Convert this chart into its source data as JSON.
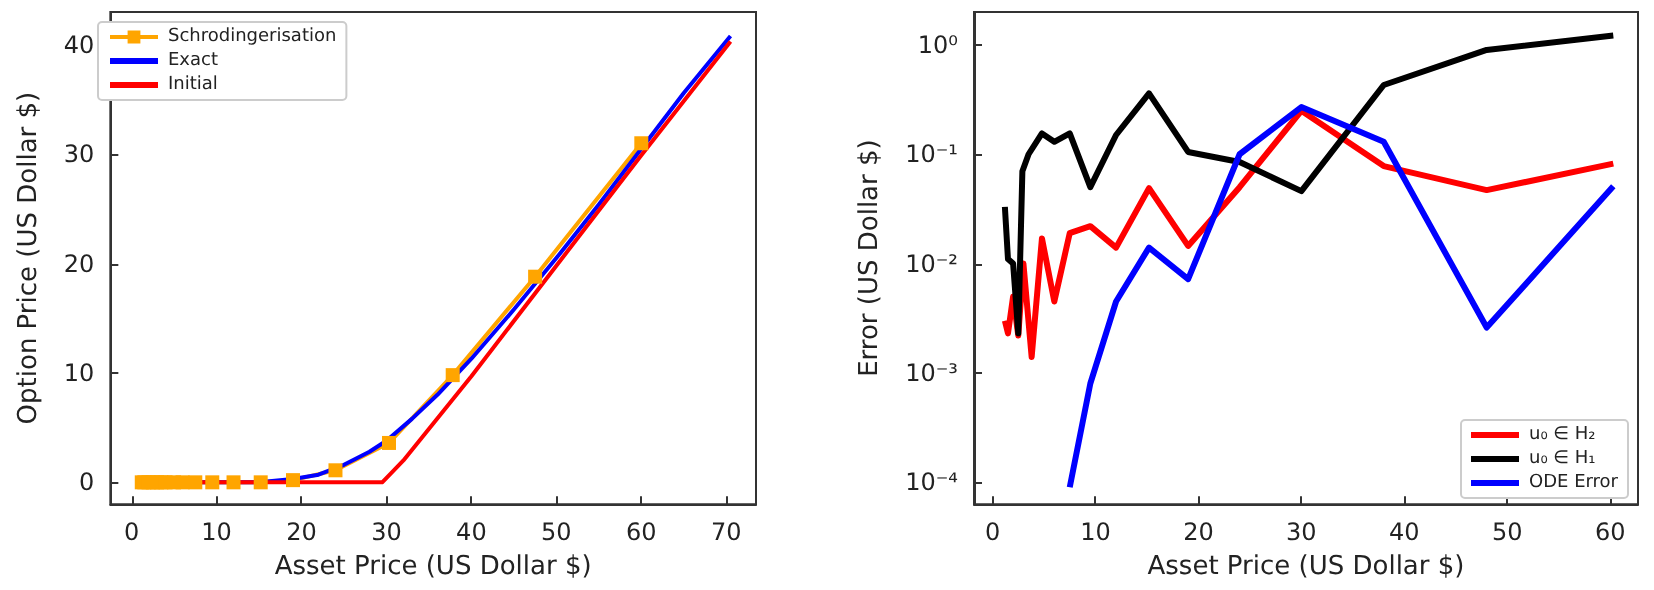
{
  "chart_data": [
    {
      "type": "line",
      "xlabel": "Asset Price (US Dollar $)",
      "ylabel": "Option Price (US Dollar $)",
      "xlim": [
        -2.5,
        73.5
      ],
      "ylim": [
        -2,
        43
      ],
      "xticks": [
        0,
        10,
        20,
        30,
        40,
        50,
        60,
        70
      ],
      "yticks": [
        0,
        10,
        20,
        30,
        40
      ],
      "legend": "top left",
      "series": [
        {
          "name": "Schrodingerisation",
          "color": "#ffa500",
          "marker": "square",
          "x": [
            1.2,
            1.5,
            2,
            2.5,
            3,
            3.5,
            4,
            5,
            6,
            7.5,
            9.5,
            12,
            15.2,
            19,
            24,
            30.3,
            37.8,
            47.5,
            60
          ],
          "values": [
            0,
            0,
            0,
            0,
            0,
            0,
            0,
            0,
            0,
            0,
            0,
            0,
            0,
            0.2,
            1.1,
            3.6,
            9.8,
            18.8,
            31
          ]
        },
        {
          "name": "Exact",
          "color": "#0000ff",
          "marker": "none",
          "x": [
            1.5,
            10,
            15,
            19,
            22,
            25,
            28,
            30,
            33,
            36,
            40,
            45,
            50,
            55,
            60,
            65,
            70.5
          ],
          "values": [
            0,
            0,
            0,
            0.3,
            0.7,
            1.6,
            2.8,
            3.8,
            5.8,
            8,
            11.3,
            15.8,
            20.5,
            25.4,
            30.5,
            35.6,
            40.8
          ]
        },
        {
          "name": "Initial",
          "color": "#ff0000",
          "marker": "none",
          "x": [
            1.5,
            29.5,
            30.5,
            32,
            40,
            50,
            60,
            70.5
          ],
          "values": [
            0,
            0,
            0.8,
            2,
            9.7,
            19.8,
            29.9,
            40.3
          ]
        }
      ]
    },
    {
      "type": "line",
      "xlabel": "Asset Price (US Dollar $)",
      "ylabel": "Error (US Dollar $)",
      "log": "y",
      "xlim": [
        -1.8,
        62.7
      ],
      "ylim": [
        6.3e-05,
        2
      ],
      "xticks": [
        0,
        10,
        20,
        30,
        40,
        50,
        60
      ],
      "yticks": [
        {
          "value": 0.0001,
          "label": "10⁻⁴"
        },
        {
          "value": 0.001,
          "label": "10⁻³"
        },
        {
          "value": 0.01,
          "label": "10⁻²"
        },
        {
          "value": 0.1,
          "label": "10⁻¹"
        },
        {
          "value": 1,
          "label": "10⁰"
        }
      ],
      "legend": "bottom right",
      "series": [
        {
          "name": "u₀ ∈ H₂",
          "color": "#ff0000",
          "marker": "none",
          "x": [
            1.2,
            1.5,
            2,
            2.5,
            3,
            3.8,
            4.8,
            6,
            7.5,
            9.5,
            12,
            15.2,
            19,
            24,
            30,
            38,
            48,
            60.3
          ],
          "values": [
            0.003,
            0.0023,
            0.005,
            0.0022,
            0.01,
            0.0014,
            0.017,
            0.0045,
            0.019,
            0.022,
            0.014,
            0.049,
            0.0145,
            0.05,
            0.25,
            0.078,
            0.047,
            0.082
          ]
        },
        {
          "name": "u₀ ∈ H₁",
          "color": "#000000",
          "marker": "none",
          "x": [
            1.2,
            1.5,
            2,
            2.5,
            2.9,
            3.5,
            4.8,
            6,
            7.5,
            9.5,
            12,
            15.2,
            19,
            24,
            30,
            38,
            48,
            60.3
          ],
          "values": [
            0.033,
            0.011,
            0.01,
            0.0023,
            0.07,
            0.1,
            0.155,
            0.13,
            0.155,
            0.05,
            0.15,
            0.36,
            0.105,
            0.085,
            0.046,
            0.43,
            0.9,
            1.22
          ]
        },
        {
          "name": "ODE Error",
          "color": "#0000ff",
          "marker": "none",
          "x": [
            7.5,
            9.5,
            12,
            15.2,
            19,
            24,
            30,
            38,
            48,
            60.3
          ],
          "values": [
            9e-05,
            0.0008,
            0.0045,
            0.014,
            0.0072,
            0.1,
            0.27,
            0.13,
            0.0026,
            0.051
          ]
        }
      ]
    }
  ]
}
